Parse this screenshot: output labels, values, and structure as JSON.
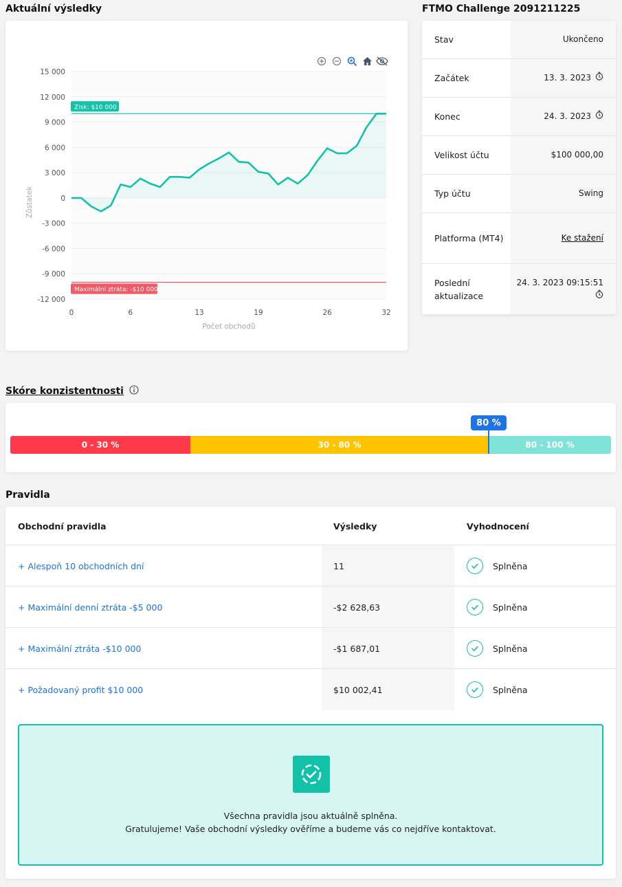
{
  "titles": {
    "results": "Aktuální výsledky",
    "challenge": "FTMO Challenge 2091211225",
    "consistency": "Skóre konzistentnosti",
    "rules": "Pravidla"
  },
  "chart_data": {
    "type": "line",
    "title": "",
    "xlabel": "Počet obchodů",
    "ylabel": "Zůstatek",
    "xlim": [
      0,
      32
    ],
    "ylim": [
      -12000,
      15000
    ],
    "x_ticks": [
      "0",
      "6",
      "13",
      "19",
      "26",
      "32"
    ],
    "y_ticks": [
      "15 000",
      "12 000",
      "9 000",
      "6 000",
      "3 000",
      "0",
      "-3 000",
      "-6 000",
      "-9 000",
      "-12 000"
    ],
    "x": [
      0,
      1,
      2,
      3,
      4,
      5,
      6,
      7,
      8,
      9,
      10,
      11,
      12,
      13,
      14,
      15,
      16,
      17,
      18,
      19,
      20,
      21,
      22,
      23,
      24,
      25,
      26,
      27,
      28,
      29,
      30,
      31,
      32
    ],
    "series": [
      {
        "values": [
          0,
          0,
          -1000,
          -1600,
          -900,
          1600,
          1300,
          2300,
          1700,
          1300,
          2500,
          2500,
          2400,
          3400,
          4100,
          4700,
          5400,
          4300,
          4200,
          3100,
          2900,
          1600,
          2400,
          1700,
          2700,
          4400,
          5900,
          5300,
          5300,
          6200,
          8400,
          10000,
          10000
        ]
      }
    ],
    "annotations": [
      {
        "label": "Zisk: $10 000",
        "y": 10000,
        "color": "#11c2a8"
      },
      {
        "label": "Maximální ztráta: -$10 000",
        "y": -10000,
        "color": "#f05a66"
      }
    ],
    "grid": true
  },
  "info": [
    {
      "key": "Stav",
      "value": "Ukončeno"
    },
    {
      "key": "Začátek",
      "value": "13. 3. 2023",
      "icon": "stopwatch-icon"
    },
    {
      "key": "Konec",
      "value": "24. 3. 2023",
      "icon": "stopwatch-icon"
    },
    {
      "key": "Velikost účtu",
      "value": "$100 000,00"
    },
    {
      "key": "Typ účtu",
      "value": "Swing"
    },
    {
      "key": "Platforma (MT4)",
      "value": "Ke stažení",
      "link": true
    },
    {
      "key": "Poslední aktualizace",
      "value": "24. 3. 2023 09:15:51",
      "icon": "stopwatch-icon"
    }
  ],
  "score": {
    "segments": [
      "0 - 30 %",
      "30 - 80 %",
      "80 - 100 %"
    ],
    "value_label": "80 %",
    "value": 80,
    "colors": {
      "red": "#ff3a4b",
      "yellow": "#ffc400",
      "teal": "#80e3d7",
      "marker": "#1c74e5"
    }
  },
  "rules": {
    "headers": [
      "Obchodní pravidla",
      "Výsledky",
      "Vyhodnocení"
    ],
    "rows": [
      {
        "name": "+ Alespoň 10 obchodních dní",
        "result": "11",
        "status": "Splněna"
      },
      {
        "name": "+ Maximální denní ztráta -$5 000",
        "result": "-$2 628,63",
        "status": "Splněna"
      },
      {
        "name": "+ Maximální ztráta -$10 000",
        "result": "-$1 687,01",
        "status": "Splněna"
      },
      {
        "name": "+ Požadovaný profit $10 000",
        "result": "$10 002,41",
        "status": "Splněna"
      }
    ],
    "success_line1": "Všechna pravidla jsou aktuálně splněna.",
    "success_line2": "Gratulujeme! Vaše obchodní výsledky ověříme a budeme vás co nejdříve kontaktovat."
  },
  "colors": {
    "accent": "#11c2a8",
    "link": "#1c74e5"
  }
}
